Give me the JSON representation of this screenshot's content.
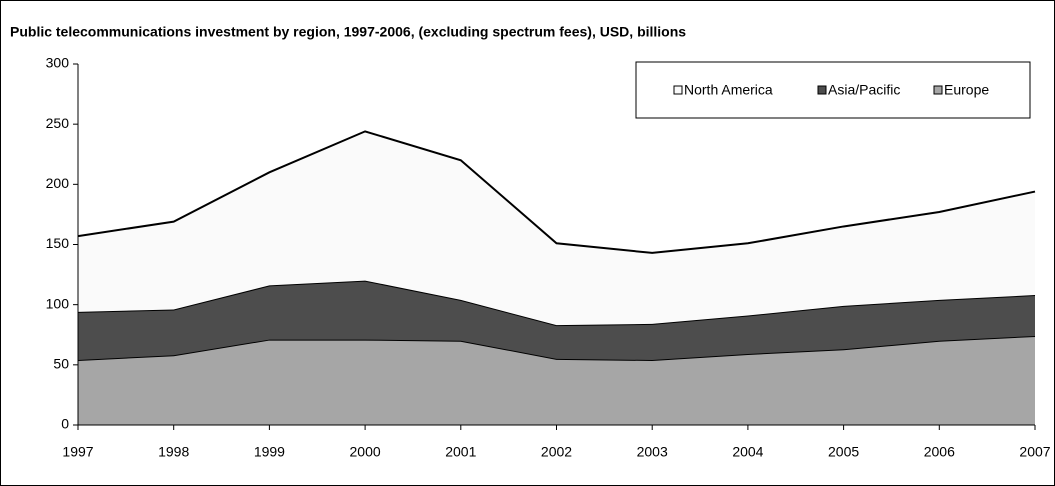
{
  "chart_data": {
    "type": "stacked-area",
    "title": "Public telecommunications investment by region, 1997-2006, (excluding spectrum fees), USD, billions",
    "x": [
      1997,
      1998,
      1999,
      2000,
      2001,
      2002,
      2003,
      2004,
      2005,
      2006,
      2007
    ],
    "xlim": [
      1997,
      2007
    ],
    "series": [
      {
        "name": "Europe",
        "color": "#a6a6a6",
        "values": [
          54,
          58,
          71,
          71,
          70,
          55,
          54,
          59,
          63,
          70,
          74
        ]
      },
      {
        "name": "Asia/Pacific",
        "color": "#4d4d4d",
        "values": [
          40,
          38,
          45,
          49,
          34,
          28,
          30,
          32,
          36,
          34,
          34
        ]
      },
      {
        "name": "North America",
        "color": "#fafafa",
        "values": [
          63,
          73,
          94,
          124,
          116,
          68,
          59,
          60,
          66,
          73,
          86
        ]
      }
    ],
    "ylim": [
      0,
      300
    ],
    "yticks": [
      0,
      50,
      100,
      150,
      200,
      250,
      300
    ],
    "grid": false,
    "legend": "top-right"
  }
}
